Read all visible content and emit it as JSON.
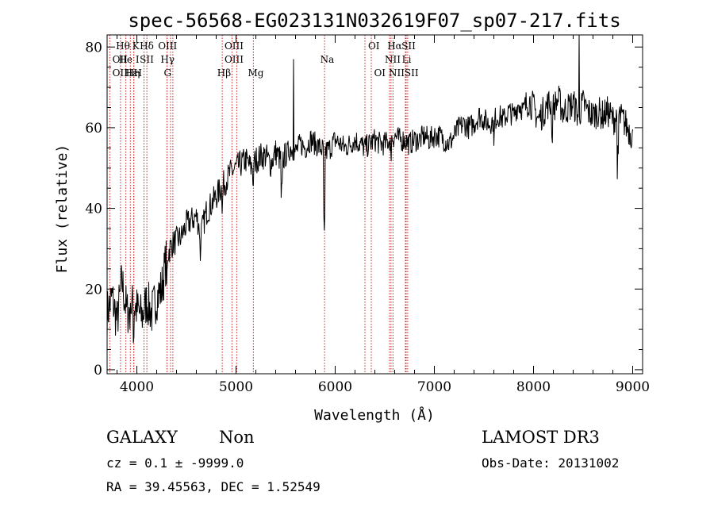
{
  "info": {
    "object_class": "GALAXY",
    "subclass": "Non",
    "survey": "LAMOST DR3",
    "cz_text": "cz = 0.1 ± -9999.0",
    "obs_date": "Obs-Date: 20131002",
    "coords": "RA =  39.45563, DEC =    1.52549"
  },
  "colors": {
    "line_marker": "#cc2222",
    "spectrum": "#000000",
    "axes": "#000000"
  },
  "chart_data": {
    "type": "line",
    "title": "spec-56568-EG023131N032619F07_sp07-217.fits",
    "xlabel": "Wavelength (Å)",
    "ylabel": "Flux (relative)",
    "xlim": [
      3700,
      9100
    ],
    "ylim": [
      -1,
      83
    ],
    "xticks": [
      4000,
      5000,
      6000,
      7000,
      8000,
      9000
    ],
    "yticks": [
      0,
      20,
      40,
      60,
      80
    ],
    "grid": false,
    "series": [
      {
        "x": [
          3700,
          3750,
          3800,
          3850,
          3900,
          3950,
          4000,
          4050,
          4100,
          4150,
          4200,
          4250,
          4300,
          4350,
          4400,
          4450,
          4500,
          4550,
          4600,
          4650,
          4700,
          4750,
          4800,
          4850,
          4900,
          4950,
          5000,
          5050,
          5100,
          5150,
          5200,
          5250,
          5300,
          5350,
          5400,
          5450,
          5500,
          5550,
          5600,
          5650,
          5700,
          5750,
          5800,
          5850,
          5900,
          5950,
          6000,
          6050,
          6100,
          6150,
          6200,
          6250,
          6300,
          6350,
          6400,
          6450,
          6500,
          6550,
          6600,
          6650,
          6700,
          6750,
          6800,
          6850,
          6900,
          6950,
          7000,
          7050,
          7100,
          7150,
          7200,
          7250,
          7300,
          7350,
          7400,
          7450,
          7500,
          7550,
          7600,
          7650,
          7700,
          7750,
          7800,
          7850,
          7900,
          7950,
          8000,
          8050,
          8100,
          8150,
          8200,
          8250,
          8300,
          8350,
          8400,
          8450,
          8500,
          8550,
          8600,
          8650,
          8700,
          8750,
          8800,
          8850,
          8900,
          8950,
          9000
        ],
        "values": [
          14,
          18,
          12,
          22,
          14,
          16,
          15,
          13,
          17,
          14,
          18,
          20,
          28,
          31,
          32,
          33,
          36,
          37,
          38,
          34,
          39,
          41,
          43,
          45,
          47,
          49,
          50,
          51,
          52,
          50,
          52,
          53,
          53,
          51,
          54,
          52,
          53,
          55,
          54,
          56,
          55,
          57,
          56,
          55,
          54,
          55,
          57,
          56,
          55,
          56,
          57,
          56,
          55,
          56,
          57,
          56,
          56,
          57,
          58,
          57,
          57,
          56,
          57,
          57,
          58,
          57,
          58,
          58,
          57,
          56,
          58,
          60,
          61,
          60,
          61,
          63,
          62,
          61,
          62,
          63,
          62,
          64,
          63,
          66,
          64,
          67,
          65,
          62,
          64,
          66,
          65,
          67,
          64,
          65,
          66,
          63,
          66,
          64,
          63,
          64,
          63,
          64,
          62,
          63,
          62,
          60,
          58
        ]
      }
    ],
    "line_markers": [
      {
        "wavelength": 3727,
        "label": "OII"
      },
      {
        "wavelength": 3970,
        "label": "Hε"
      },
      {
        "wavelength": 3889,
        "label": "He I"
      },
      {
        "wavelength": 3835,
        "label": "Hη"
      },
      {
        "wavelength": 4101,
        "label": "Hδ"
      },
      {
        "wavelength": 4861,
        "label": "Hβ"
      },
      {
        "wavelength": 4340,
        "label": "Hγ"
      },
      {
        "wavelength": 3934,
        "label": "K"
      },
      {
        "wavelength": 3968,
        "label": "H"
      },
      {
        "wavelength": 4304,
        "label": "G"
      },
      {
        "wavelength": 5175,
        "label": "Mg"
      },
      {
        "wavelength": 5893,
        "label": "Na"
      },
      {
        "wavelength": 6300,
        "label": "OI"
      },
      {
        "wavelength": 6364,
        "label": "OI"
      },
      {
        "wavelength": 6548,
        "label": "NII"
      },
      {
        "wavelength": 6563,
        "label": "Hα"
      },
      {
        "wavelength": 6583,
        "label": "NII"
      },
      {
        "wavelength": 6708,
        "label": "Li"
      },
      {
        "wavelength": 6716,
        "label": "SII"
      },
      {
        "wavelength": 6731,
        "label": "SII"
      },
      {
        "wavelength": 4959,
        "label": "OIII"
      },
      {
        "wavelength": 5007,
        "label": "OIII"
      },
      {
        "wavelength": 4363,
        "label": "OIII"
      },
      {
        "wavelength": 4072,
        "label": "SII"
      }
    ],
    "marker_label_rows": [
      {
        "x": 3830,
        "row": 1,
        "label": "OII"
      },
      {
        "x": 3830,
        "row": 2,
        "label": "OII"
      },
      {
        "x": 3860,
        "row": 0,
        "label": "Hθ"
      },
      {
        "x": 3920,
        "row": 1,
        "label": "He I"
      },
      {
        "x": 3940,
        "row": 2,
        "label": "Hε"
      },
      {
        "x": 3960,
        "row": 2,
        "label": "Hη"
      },
      {
        "x": 3990,
        "row": 0,
        "label": "K"
      },
      {
        "x": 4010,
        "row": 2,
        "label": "H"
      },
      {
        "x": 4100,
        "row": 0,
        "label": "Hδ"
      },
      {
        "x": 4100,
        "row": 1,
        "label": "SII"
      },
      {
        "x": 4310,
        "row": 0,
        "label": "OIII"
      },
      {
        "x": 4310,
        "row": 1,
        "label": "Hγ"
      },
      {
        "x": 4310,
        "row": 2,
        "label": "G"
      },
      {
        "x": 4880,
        "row": 2,
        "label": "Hβ"
      },
      {
        "x": 4980,
        "row": 0,
        "label": "OIII"
      },
      {
        "x": 4980,
        "row": 1,
        "label": "OIII"
      },
      {
        "x": 5200,
        "row": 2,
        "label": "Mg"
      },
      {
        "x": 5920,
        "row": 1,
        "label": "Na"
      },
      {
        "x": 6390,
        "row": 0,
        "label": "OI"
      },
      {
        "x": 6450,
        "row": 2,
        "label": "OI"
      },
      {
        "x": 6600,
        "row": 0,
        "label": "Hα"
      },
      {
        "x": 6740,
        "row": 0,
        "label": "SII"
      },
      {
        "x": 6580,
        "row": 1,
        "label": "NII"
      },
      {
        "x": 6720,
        "row": 1,
        "label": "Li"
      },
      {
        "x": 6620,
        "row": 2,
        "label": "NII"
      },
      {
        "x": 6770,
        "row": 2,
        "label": "SII"
      }
    ]
  }
}
